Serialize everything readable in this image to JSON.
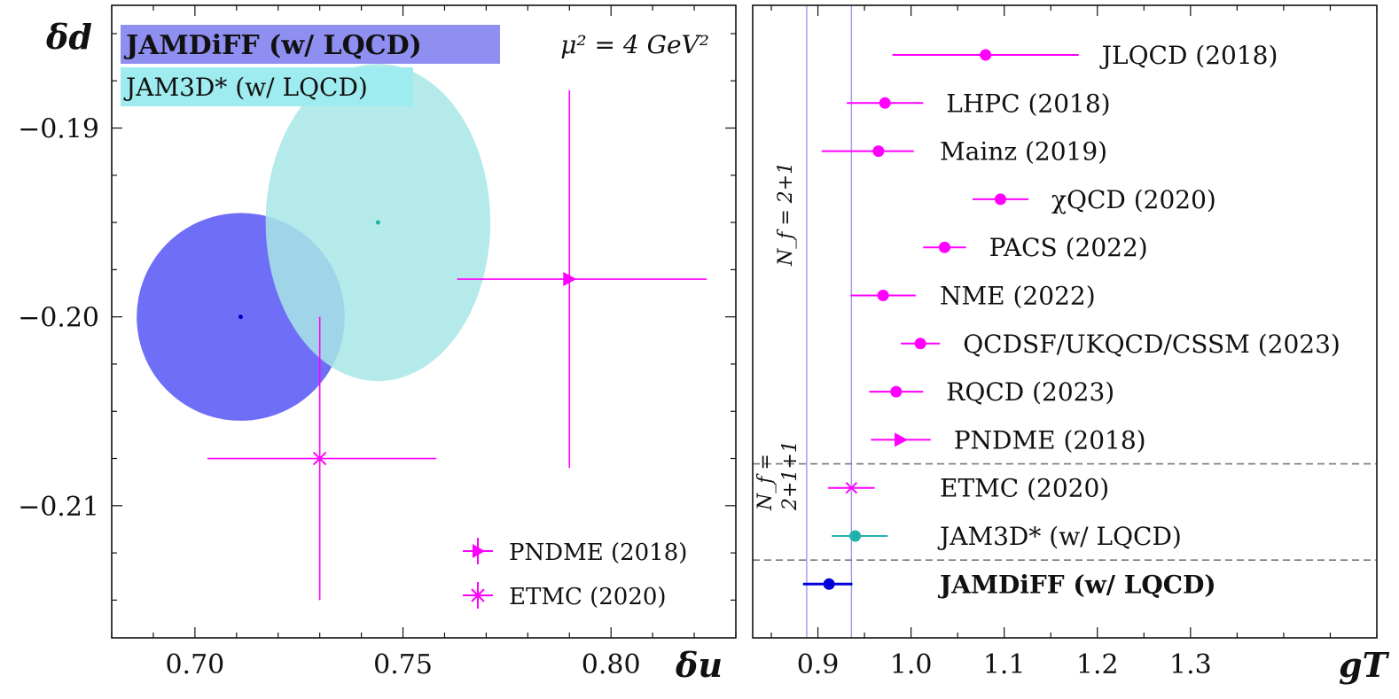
{
  "chart_data": [
    {
      "type": "scatter",
      "title": "",
      "xlabel": "δu",
      "ylabel": "δd",
      "xlim": [
        0.68,
        0.83
      ],
      "ylim": [
        -0.217,
        -0.1835
      ],
      "xticks": [
        0.7,
        0.75,
        0.8
      ],
      "xtick_labels": [
        "0.70",
        "0.75",
        "0.80"
      ],
      "yticks": [
        -0.19,
        -0.2,
        -0.21
      ],
      "ytick_labels": [
        "−0.19",
        "−0.20",
        "−0.21"
      ],
      "annotation": "μ² = 4 GeV²",
      "ellipses": [
        {
          "name": "JAMDiFF (w/ LQCD)",
          "center": [
            0.711,
            -0.2
          ],
          "ru": 0.025,
          "rd": 0.0055,
          "angle_deg": -35,
          "color": "#5a5af5"
        },
        {
          "name": "JAM3D* (w/ LQCD)",
          "center": [
            0.744,
            -0.195
          ],
          "ru": 0.027,
          "rd": 0.0084,
          "angle_deg": 0,
          "color": "#a8e6e6"
        }
      ],
      "series": [
        {
          "name": "PNDME (2018)",
          "marker": "triangle-right",
          "x": 0.79,
          "y": -0.198,
          "xerr": [
            0.027,
            0.033
          ],
          "yerr": [
            0.01,
            0.01
          ],
          "color": "#ff00ff"
        },
        {
          "name": "ETMC (2020)",
          "marker": "x",
          "x": 0.73,
          "y": -0.2075,
          "xerr": [
            0.027,
            0.028
          ],
          "yerr": [
            0.0075,
            0.0075
          ],
          "color": "#ff00ff"
        }
      ],
      "boxed_labels": [
        {
          "text": "JAMDiFF (w/ LQCD)",
          "bold": true,
          "bg": "#8f8ff2"
        },
        {
          "text": "JAM3D* (w/ LQCD)",
          "bold": false,
          "bg": "#9eecef"
        }
      ],
      "legend": {
        "placement": "bottom-right",
        "entries": [
          "PNDME (2018)",
          "ETMC (2020)"
        ]
      }
    },
    {
      "type": "scatter",
      "title": "",
      "xlabel": "gT",
      "xlim": [
        0.83,
        1.5
      ],
      "xticks": [
        0.9,
        1.0,
        1.1,
        1.2,
        1.3
      ],
      "xtick_labels": [
        "0.9",
        "1.0",
        "1.1",
        "1.2",
        "1.3"
      ],
      "band": [
        0.888,
        0.936
      ],
      "group_labels": [
        "N_f = 2+1",
        "N_f =",
        "2+1+1"
      ],
      "entries": [
        {
          "label": "JLQCD (2018)",
          "value": 1.08,
          "err_lo": 0.1,
          "err_hi": 0.1,
          "marker": "circle",
          "color": "#ff00ff",
          "bold": false
        },
        {
          "label": "LHPC (2018)",
          "value": 0.972,
          "err_lo": 0.041,
          "err_hi": 0.041,
          "marker": "circle",
          "color": "#ff00ff",
          "bold": false
        },
        {
          "label": "Mainz (2019)",
          "value": 0.965,
          "err_lo": 0.061,
          "err_hi": 0.038,
          "marker": "circle",
          "color": "#ff00ff",
          "bold": false
        },
        {
          "label": "χQCD (2020)",
          "value": 1.096,
          "err_lo": 0.03,
          "err_hi": 0.03,
          "marker": "circle",
          "color": "#ff00ff",
          "bold": false
        },
        {
          "label": "PACS (2022)",
          "value": 1.036,
          "err_lo": 0.023,
          "err_hi": 0.023,
          "marker": "circle",
          "color": "#ff00ff",
          "bold": false
        },
        {
          "label": "NME (2022)",
          "value": 0.97,
          "err_lo": 0.035,
          "err_hi": 0.035,
          "marker": "circle",
          "color": "#ff00ff",
          "bold": false
        },
        {
          "label": "QCDSF/UKQCD/CSSM (2023)",
          "value": 1.01,
          "err_lo": 0.021,
          "err_hi": 0.021,
          "marker": "circle",
          "color": "#ff00ff",
          "bold": false
        },
        {
          "label": "RQCD (2023)",
          "value": 0.984,
          "err_lo": 0.029,
          "err_hi": 0.029,
          "marker": "circle",
          "color": "#ff00ff",
          "bold": false
        },
        {
          "label": "PNDME (2018)",
          "value": 0.989,
          "err_lo": 0.032,
          "err_hi": 0.032,
          "marker": "triangle-right",
          "color": "#ff00ff",
          "bold": false
        },
        {
          "label": "ETMC (2020)",
          "value": 0.936,
          "err_lo": 0.025,
          "err_hi": 0.025,
          "marker": "x",
          "color": "#ff00ff",
          "bold": false
        },
        {
          "label": "JAM3D* (w/ LQCD)",
          "value": 0.94,
          "err_lo": 0.025,
          "err_hi": 0.035,
          "marker": "circle",
          "color": "#20b2aa",
          "bold": false
        },
        {
          "label": "JAMDiFF (w/ LQCD)",
          "value": 0.912,
          "err_lo": 0.028,
          "err_hi": 0.025,
          "marker": "circle",
          "color": "#0000dd",
          "bold": true
        }
      ],
      "separators_after": [
        8,
        10
      ]
    }
  ]
}
